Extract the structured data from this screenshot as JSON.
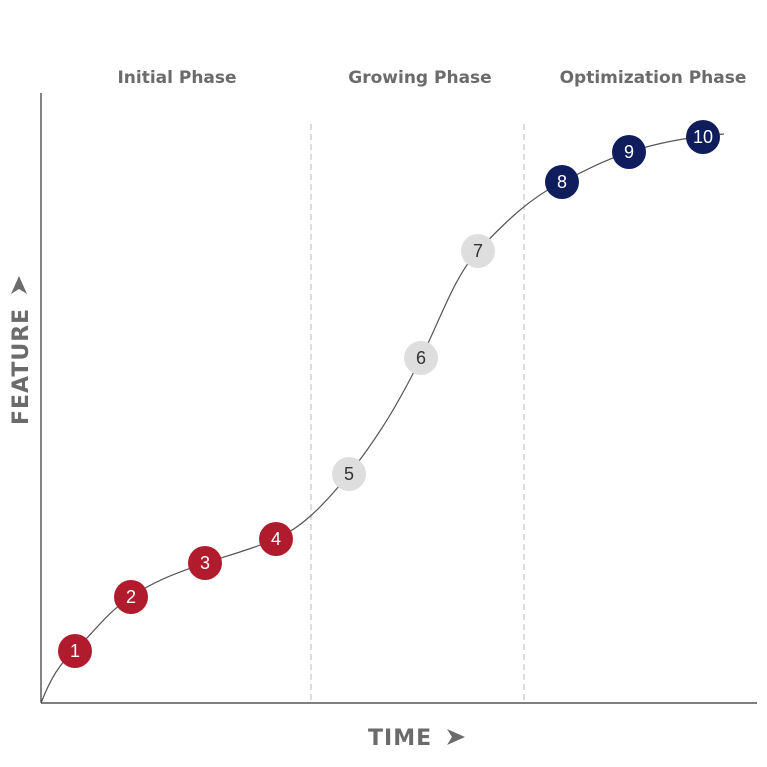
{
  "phases": [
    "Initial Phase",
    "Growing Phase",
    "Optimization Phase"
  ],
  "axes": {
    "x_label": "TIME",
    "y_label": "FEATURE"
  },
  "nodes": [
    {
      "label": "1"
    },
    {
      "label": "2"
    },
    {
      "label": "3"
    },
    {
      "label": "4"
    },
    {
      "label": "5"
    },
    {
      "label": "6"
    },
    {
      "label": "7"
    },
    {
      "label": "8"
    },
    {
      "label": "9"
    },
    {
      "label": "10"
    }
  ]
}
